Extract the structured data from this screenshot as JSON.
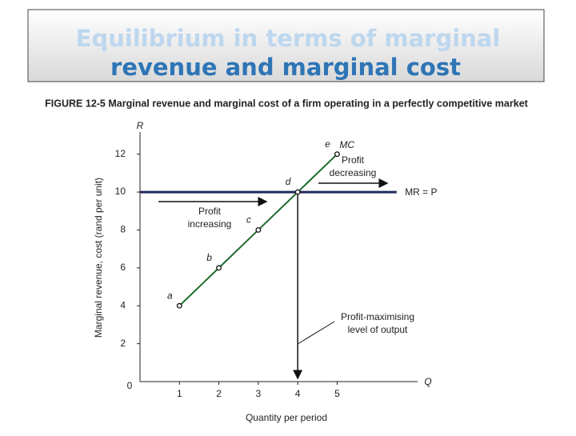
{
  "slide": {
    "title_lines": [
      "Equilibrium in terms of marginal",
      "revenue and marginal cost"
    ]
  },
  "chart_data": {
    "type": "line",
    "title": "FIGURE 12-5  Marginal revenue and marginal cost of a firm operating in a perfectly competitive market",
    "x_label": "Quantity per period",
    "y_label": "Marginal revenue, cost (rand per unit)",
    "x_axis_symbol": "Q",
    "y_axis_symbol": "R",
    "origin_label": "0",
    "x": [
      1,
      2,
      3,
      4,
      5
    ],
    "series": [
      {
        "name": "MC",
        "color": "#1e6b2e",
        "values": [
          4,
          6,
          8,
          10,
          12
        ],
        "point_labels": [
          "a",
          "b",
          "c",
          "d",
          "e"
        ]
      }
    ],
    "mr": {
      "name": "MR = P",
      "color": "#1f2a5a",
      "value": 10
    },
    "xlim": [
      0,
      7
    ],
    "ylim": [
      0,
      13
    ],
    "xticks": [
      1,
      2,
      3,
      4,
      5
    ],
    "yticks": [
      2,
      4,
      6,
      8,
      10,
      12
    ],
    "annotations": [
      {
        "lines": [
          "Profit",
          "increasing"
        ]
      },
      {
        "lines": [
          "Profit",
          "decreasing"
        ]
      },
      {
        "lines": [
          "Profit-maximising",
          "level of output"
        ]
      }
    ]
  }
}
